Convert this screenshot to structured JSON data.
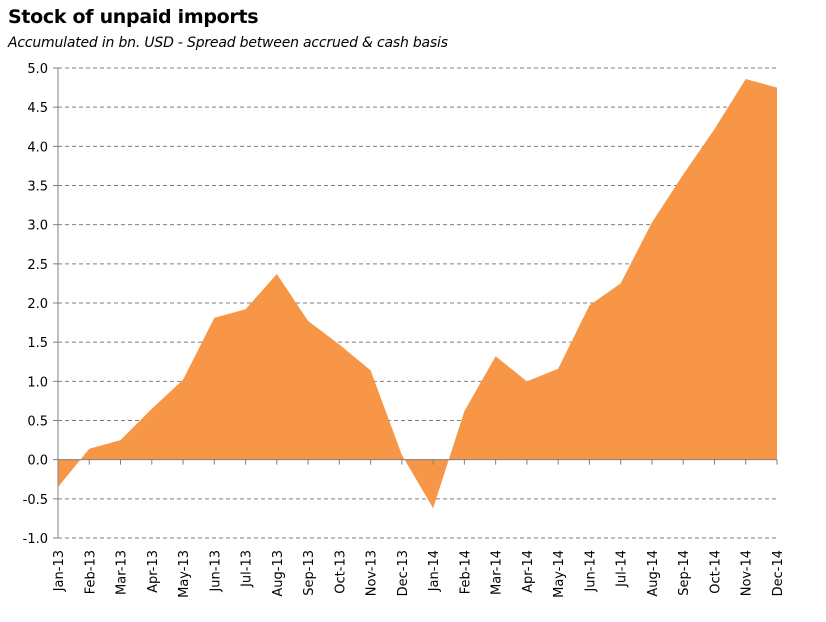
{
  "chart_data": {
    "type": "area",
    "title": "Stock of unpaid imports",
    "subtitle": "Accumulated in bn. USD - Spread  between accrued  & cash basis",
    "xlabel": "",
    "ylabel": "",
    "ylim": [
      -1.0,
      5.0
    ],
    "ytick_labels": [
      "5.0",
      "4.5",
      "4.0",
      "3.5",
      "3.0",
      "2.5",
      "2.0",
      "1.5",
      "1.0",
      "0.5",
      "0.0",
      "-0.5",
      "-1.0"
    ],
    "categories": [
      "Jan-13",
      "Feb-13",
      "Mar-13",
      "Apr-13",
      "May-13",
      "Jun-13",
      "Jul-13",
      "Aug-13",
      "Sep-13",
      "Oct-13",
      "Nov-13",
      "Dec-13",
      "Jan-14",
      "Feb-14",
      "Mar-14",
      "Apr-14",
      "May-14",
      "Jun-14",
      "Jul-14",
      "Aug-14",
      "Sep-14",
      "Oct-14",
      "Nov-14",
      "Dec-14"
    ],
    "values": [
      -0.35,
      0.14,
      0.25,
      0.65,
      1.02,
      1.81,
      1.92,
      2.37,
      1.77,
      1.47,
      1.14,
      0.06,
      -0.62,
      0.62,
      1.32,
      1.0,
      1.16,
      1.97,
      2.25,
      3.03,
      3.64,
      4.22,
      4.86,
      4.75
    ],
    "grid": true,
    "legend": "none",
    "colors": {
      "fill": "#F79646",
      "grid": "#808080",
      "axis": "#808080"
    }
  }
}
